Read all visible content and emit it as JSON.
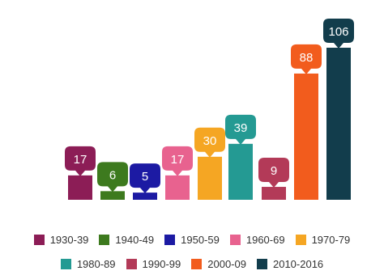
{
  "chart_data": {
    "type": "bar",
    "categories": [
      "1930-39",
      "1940-49",
      "1950-59",
      "1960-69",
      "1970-79",
      "1980-89",
      "1990-99",
      "2000-09",
      "2010-2016"
    ],
    "values": [
      17,
      6,
      5,
      17,
      30,
      39,
      9,
      88,
      106
    ],
    "colors": [
      "#8c1d56",
      "#3d7a1e",
      "#1c1aa3",
      "#e8628f",
      "#f5a623",
      "#249a93",
      "#b33a58",
      "#f25c1d",
      "#123d4c"
    ],
    "title": "",
    "xlabel": "",
    "ylabel": "",
    "ylim": [
      0,
      106
    ],
    "grid": false,
    "legend_placement": "bottom",
    "data_labels": true
  }
}
